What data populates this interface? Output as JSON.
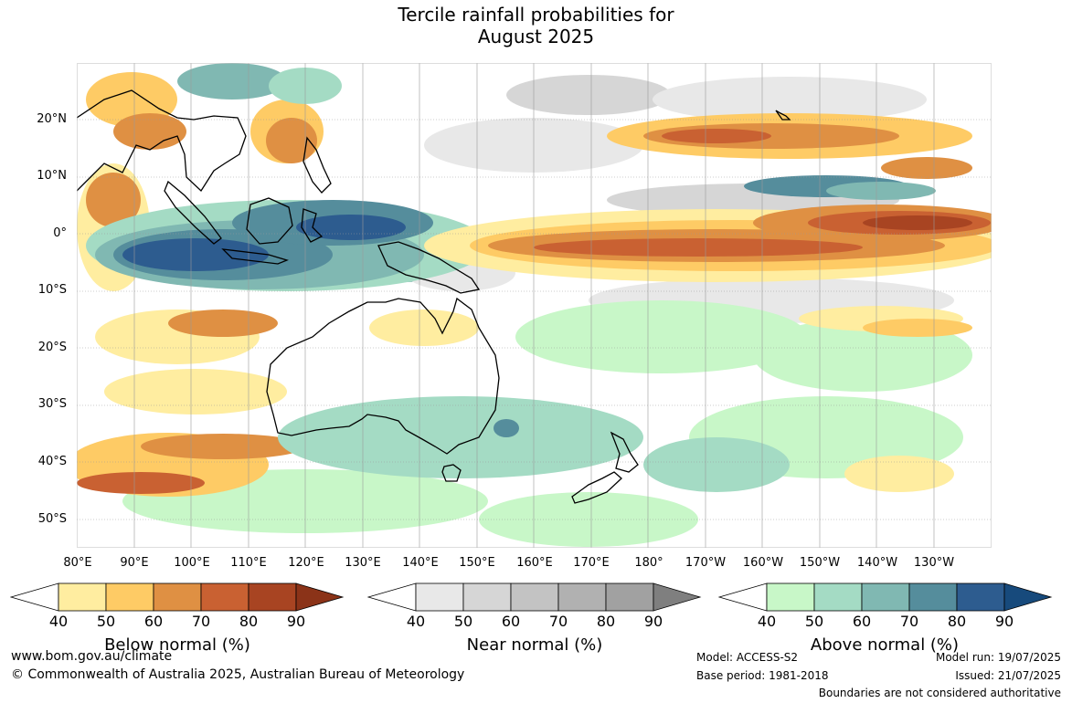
{
  "title": {
    "line1": "Tercile rainfall probabilities for",
    "line2": "August 2025"
  },
  "map": {
    "latitude_labels": [
      "20°N",
      "10°N",
      "0°",
      "10°S",
      "20°S",
      "30°S",
      "40°S",
      "50°S"
    ],
    "longitude_labels": [
      "80°E",
      "90°E",
      "100°E",
      "110°E",
      "120°E",
      "130°E",
      "140°E",
      "150°E",
      "160°E",
      "170°E",
      "180°",
      "170°W",
      "160°W",
      "150°W",
      "140°W",
      "130°W"
    ]
  },
  "legends": {
    "below": {
      "label": "Below normal (%)",
      "ticks": [
        "40",
        "50",
        "60",
        "70",
        "80",
        "90"
      ],
      "colors": [
        "#ffffff",
        "#ffeda0",
        "#fecb65",
        "#df9043",
        "#c96132",
        "#a84422",
        "#8b3318"
      ]
    },
    "near": {
      "label": "Near normal (%)",
      "ticks": [
        "40",
        "50",
        "60",
        "70",
        "80",
        "90"
      ],
      "colors": [
        "#ffffff",
        "#e8e8e8",
        "#d6d6d6",
        "#c3c3c3",
        "#b1b1b1",
        "#a1a1a1",
        "#7f7f7f"
      ]
    },
    "above": {
      "label": "Above normal (%)",
      "ticks": [
        "40",
        "50",
        "60",
        "70",
        "80",
        "90"
      ],
      "colors": [
        "#ffffff",
        "#c8f7c8",
        "#a4dbc4",
        "#80b8b2",
        "#558d9c",
        "#2d5c8f",
        "#174a7c"
      ]
    }
  },
  "footer": {
    "website": "www.bom.gov.au/climate",
    "copyright": "© Commonwealth of Australia 2025, Australian Bureau of Meteorology",
    "model": "Model: ACCESS-S2",
    "base_period": "Base period: 1981-2018",
    "model_run": "Model run: 19/07/2025",
    "issued": "Issued: 21/07/2025",
    "boundaries_note": "Boundaries are not considered authoritative"
  },
  "colors": {
    "land_outline": "#000000",
    "grid": "#9a9a9a"
  }
}
